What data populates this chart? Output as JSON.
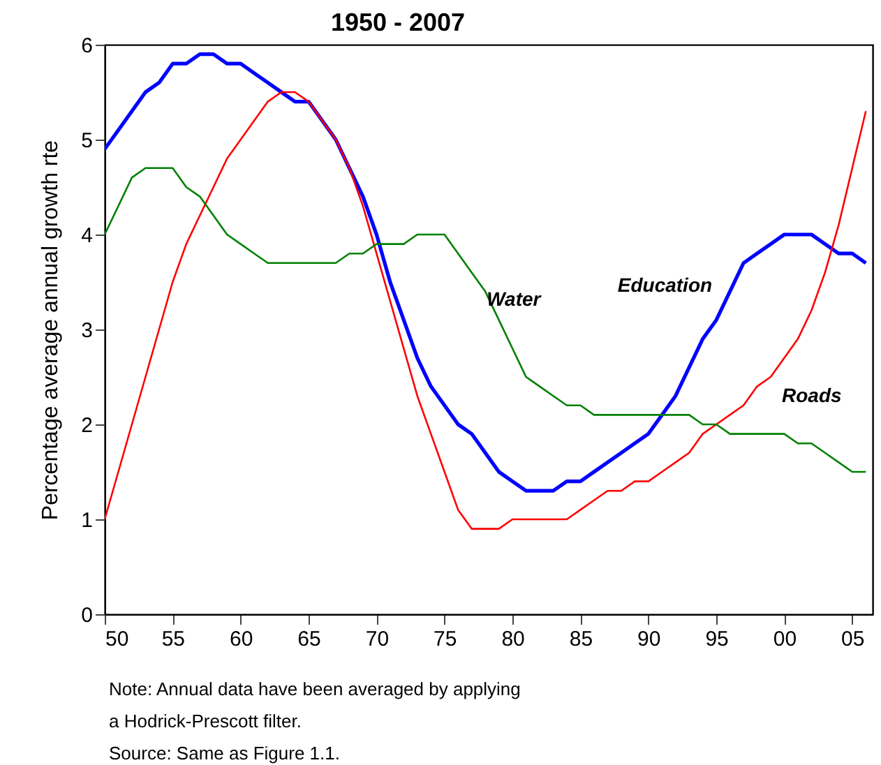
{
  "chart_data": {
    "type": "line",
    "title": "1950 - 2007",
    "ylabel": "Percentage average annual growth rte",
    "x": [
      1950,
      1951,
      1952,
      1953,
      1954,
      1955,
      1956,
      1957,
      1958,
      1959,
      1960,
      1961,
      1962,
      1963,
      1964,
      1965,
      1966,
      1967,
      1968,
      1969,
      1970,
      1971,
      1972,
      1973,
      1974,
      1975,
      1976,
      1977,
      1978,
      1979,
      1980,
      1981,
      1982,
      1983,
      1984,
      1985,
      1986,
      1987,
      1988,
      1989,
      1990,
      1991,
      1992,
      1993,
      1994,
      1995,
      1996,
      1997,
      1998,
      1999,
      2000,
      2001,
      2002,
      2003,
      2004,
      2005,
      2006
    ],
    "series": [
      {
        "name": "Education",
        "color": "#0000ff",
        "values": [
          4.9,
          5.1,
          5.3,
          5.5,
          5.6,
          5.8,
          5.8,
          5.9,
          5.9,
          5.8,
          5.8,
          5.7,
          5.6,
          5.5,
          5.4,
          5.4,
          5.2,
          5.0,
          4.7,
          4.4,
          4.0,
          3.5,
          3.1,
          2.7,
          2.4,
          2.2,
          2.0,
          1.9,
          1.7,
          1.5,
          1.4,
          1.3,
          1.3,
          1.3,
          1.4,
          1.4,
          1.5,
          1.6,
          1.7,
          1.8,
          1.9,
          2.1,
          2.3,
          2.6,
          2.9,
          3.1,
          3.4,
          3.7,
          3.8,
          3.9,
          4.0,
          4.0,
          4.0,
          3.9,
          3.8,
          3.8,
          3.7
        ]
      },
      {
        "name": "Roads",
        "color": "#ff0000",
        "values": [
          1.0,
          1.5,
          2.0,
          2.5,
          3.0,
          3.5,
          3.9,
          4.2,
          4.5,
          4.8,
          5.0,
          5.2,
          5.4,
          5.5,
          5.5,
          5.4,
          5.2,
          5.0,
          4.7,
          4.3,
          3.8,
          3.3,
          2.8,
          2.3,
          1.9,
          1.5,
          1.1,
          0.9,
          0.9,
          0.9,
          1.0,
          1.0,
          1.0,
          1.0,
          1.0,
          1.1,
          1.2,
          1.3,
          1.3,
          1.4,
          1.4,
          1.5,
          1.6,
          1.7,
          1.9,
          2.0,
          2.1,
          2.2,
          2.4,
          2.5,
          2.7,
          2.9,
          3.2,
          3.6,
          4.1,
          4.7,
          5.3
        ]
      },
      {
        "name": "Water",
        "color": "#008000",
        "values": [
          4.0,
          4.3,
          4.6,
          4.7,
          4.7,
          4.7,
          4.5,
          4.4,
          4.2,
          4.0,
          3.9,
          3.8,
          3.7,
          3.7,
          3.7,
          3.7,
          3.7,
          3.7,
          3.8,
          3.8,
          3.9,
          3.9,
          3.9,
          4.0,
          4.0,
          4.0,
          3.8,
          3.6,
          3.4,
          3.1,
          2.8,
          2.5,
          2.4,
          2.3,
          2.2,
          2.2,
          2.1,
          2.1,
          2.1,
          2.1,
          2.1,
          2.1,
          2.1,
          2.1,
          2.0,
          2.0,
          1.9,
          1.9,
          1.9,
          1.9,
          1.9,
          1.8,
          1.8,
          1.7,
          1.6,
          1.5,
          1.5
        ]
      }
    ],
    "xlim": [
      1950,
      2006.5
    ],
    "xticks": [
      {
        "value": 1950,
        "label": "50"
      },
      {
        "value": 1955,
        "label": "55"
      },
      {
        "value": 1960,
        "label": "60"
      },
      {
        "value": 1965,
        "label": "65"
      },
      {
        "value": 1970,
        "label": "70"
      },
      {
        "value": 1975,
        "label": "75"
      },
      {
        "value": 1980,
        "label": "80"
      },
      {
        "value": 1985,
        "label": "85"
      },
      {
        "value": 1990,
        "label": "90"
      },
      {
        "value": 1995,
        "label": "95"
      },
      {
        "value": 2000,
        "label": "00"
      },
      {
        "value": 2005,
        "label": "05"
      }
    ],
    "ylim": [
      0,
      6
    ],
    "yticks": [
      0,
      1,
      2,
      3,
      4,
      5,
      6
    ],
    "grid": false,
    "legend": false,
    "line_style": "solid",
    "marker": "none",
    "annotations": [
      "Note:  Annual data have been averaged by applying",
      "a Hodrick-Prescott filter.",
      "Source:  Same as Figure 1.1."
    ]
  }
}
